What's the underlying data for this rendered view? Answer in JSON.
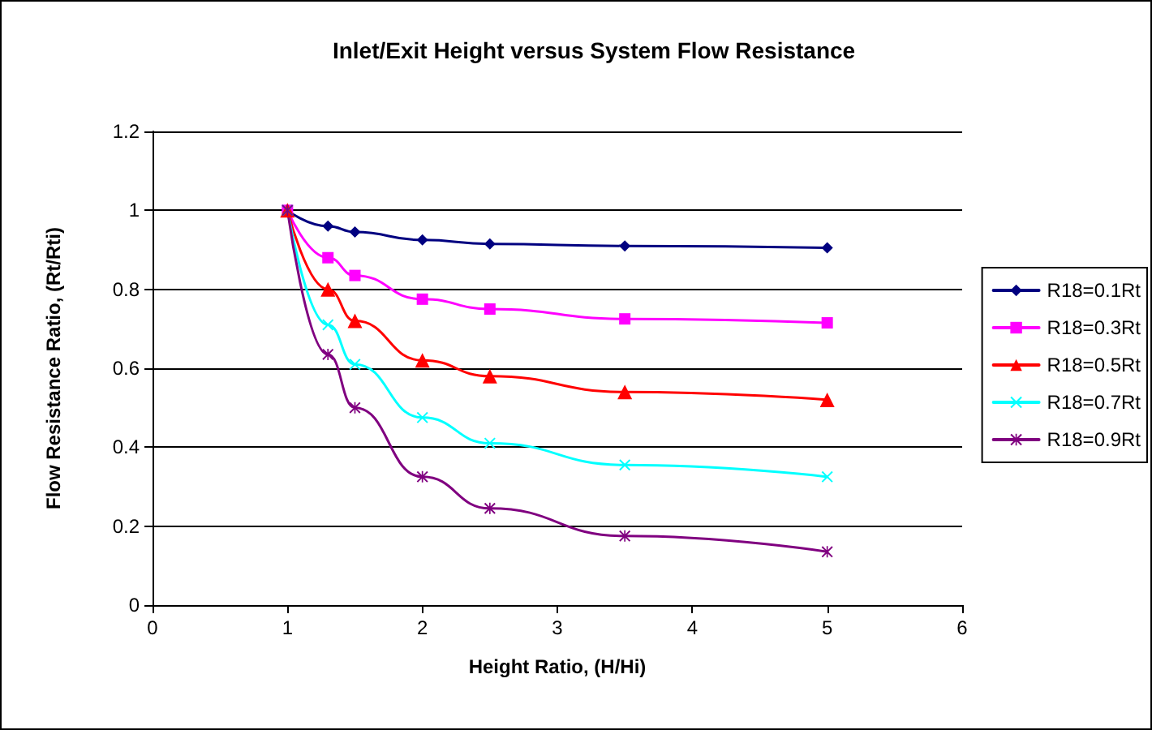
{
  "chart_data": {
    "type": "line",
    "title": "Inlet/Exit Height versus System Flow Resistance",
    "xlabel": "Height Ratio, (H/Hi)",
    "ylabel": "Flow Resistance Ratio, (Rt/Rti)",
    "x": [
      1,
      1.3,
      1.5,
      2,
      2.5,
      3.5,
      5
    ],
    "series": [
      {
        "name": "R18=0.1Rt",
        "color": "#000080",
        "marker": "diamond",
        "values": [
          1.0,
          0.96,
          0.945,
          0.925,
          0.915,
          0.91,
          0.905
        ]
      },
      {
        "name": "R18=0.3Rt",
        "color": "#ff00ff",
        "marker": "square",
        "values": [
          1.0,
          0.88,
          0.835,
          0.775,
          0.75,
          0.725,
          0.715
        ]
      },
      {
        "name": "R18=0.5Rt",
        "color": "#ff0000",
        "marker": "triangle",
        "values": [
          1.0,
          0.8,
          0.72,
          0.62,
          0.58,
          0.54,
          0.52
        ]
      },
      {
        "name": "R18=0.7Rt",
        "color": "#00ffff",
        "marker": "cross",
        "values": [
          1.0,
          0.71,
          0.61,
          0.475,
          0.41,
          0.355,
          0.325
        ]
      },
      {
        "name": "R18=0.9Rt",
        "color": "#800080",
        "marker": "star",
        "values": [
          1.0,
          0.635,
          0.5,
          0.325,
          0.245,
          0.175,
          0.135
        ]
      }
    ],
    "xlim": [
      0,
      6
    ],
    "xticks": [
      0,
      1,
      2,
      3,
      4,
      5,
      6
    ],
    "ylim": [
      0,
      1.2
    ],
    "yticks": [
      0,
      0.2,
      0.4,
      0.6,
      0.8,
      1,
      1.2
    ],
    "grid": "y",
    "legend": "right",
    "line_style": "solid"
  }
}
